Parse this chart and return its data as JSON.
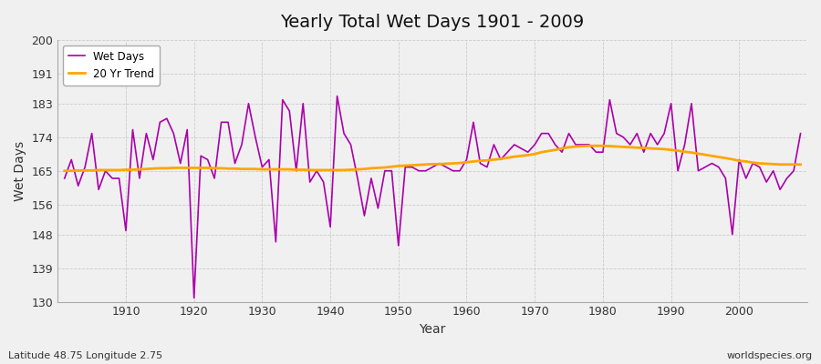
{
  "title": "Yearly Total Wet Days 1901 - 2009",
  "xlabel": "Year",
  "ylabel": "Wet Days",
  "lat_lon_label": "Latitude 48.75 Longitude 2.75",
  "source_label": "worldspecies.org",
  "ylim": [
    130,
    200
  ],
  "yticks": [
    130,
    139,
    148,
    156,
    165,
    174,
    183,
    191,
    200
  ],
  "line_color": "#AA00AA",
  "trend_color": "#FFA500",
  "bg_color": "#F0F0F0",
  "plot_bg_color": "#F0F0F0",
  "years": [
    1901,
    1902,
    1903,
    1904,
    1905,
    1906,
    1907,
    1908,
    1909,
    1910,
    1911,
    1912,
    1913,
    1914,
    1915,
    1916,
    1917,
    1918,
    1919,
    1920,
    1921,
    1922,
    1923,
    1924,
    1925,
    1926,
    1927,
    1928,
    1929,
    1930,
    1931,
    1932,
    1933,
    1934,
    1935,
    1936,
    1937,
    1938,
    1939,
    1940,
    1941,
    1942,
    1943,
    1944,
    1945,
    1946,
    1947,
    1948,
    1949,
    1950,
    1951,
    1952,
    1953,
    1954,
    1955,
    1956,
    1957,
    1958,
    1959,
    1960,
    1961,
    1962,
    1963,
    1964,
    1965,
    1966,
    1967,
    1968,
    1969,
    1970,
    1971,
    1972,
    1973,
    1974,
    1975,
    1976,
    1977,
    1978,
    1979,
    1980,
    1981,
    1982,
    1983,
    1984,
    1985,
    1986,
    1987,
    1988,
    1989,
    1990,
    1991,
    1992,
    1993,
    1994,
    1995,
    1996,
    1997,
    1998,
    1999,
    2000,
    2001,
    2002,
    2003,
    2004,
    2005,
    2006,
    2007,
    2008,
    2009
  ],
  "wet_days": [
    163,
    168,
    161,
    166,
    175,
    160,
    165,
    163,
    163,
    149,
    176,
    163,
    175,
    168,
    178,
    179,
    175,
    167,
    176,
    131,
    169,
    168,
    163,
    178,
    178,
    167,
    172,
    183,
    174,
    166,
    168,
    146,
    184,
    181,
    165,
    183,
    162,
    165,
    162,
    150,
    185,
    175,
    172,
    163,
    153,
    163,
    155,
    165,
    165,
    145,
    166,
    166,
    165,
    165,
    166,
    167,
    166,
    165,
    165,
    168,
    178,
    167,
    166,
    172,
    168,
    170,
    172,
    171,
    170,
    172,
    175,
    175,
    172,
    170,
    175,
    172,
    172,
    172,
    170,
    170,
    184,
    175,
    174,
    172,
    175,
    170,
    175,
    172,
    175,
    183,
    165,
    172,
    183,
    165,
    166,
    167,
    166,
    163,
    148,
    168,
    163,
    167,
    166,
    162,
    165,
    160,
    163,
    165,
    175
  ],
  "trend_values": [
    165.0,
    165.0,
    165.1,
    165.1,
    165.1,
    165.2,
    165.2,
    165.2,
    165.2,
    165.3,
    165.3,
    165.4,
    165.5,
    165.6,
    165.7,
    165.7,
    165.8,
    165.8,
    165.8,
    165.8,
    165.8,
    165.8,
    165.7,
    165.7,
    165.6,
    165.6,
    165.5,
    165.5,
    165.5,
    165.4,
    165.4,
    165.4,
    165.4,
    165.4,
    165.3,
    165.3,
    165.2,
    165.2,
    165.2,
    165.2,
    165.2,
    165.2,
    165.3,
    165.4,
    165.5,
    165.7,
    165.8,
    165.9,
    166.1,
    166.3,
    166.4,
    166.5,
    166.6,
    166.7,
    166.8,
    166.8,
    166.9,
    167.0,
    167.1,
    167.3,
    167.5,
    167.7,
    167.8,
    168.0,
    168.2,
    168.5,
    168.8,
    169.0,
    169.2,
    169.5,
    170.0,
    170.3,
    170.6,
    171.0,
    171.3,
    171.5,
    171.6,
    171.7,
    171.7,
    171.7,
    171.6,
    171.5,
    171.4,
    171.3,
    171.2,
    171.1,
    171.0,
    170.9,
    170.8,
    170.6,
    170.4,
    170.1,
    169.9,
    169.6,
    169.3,
    169.0,
    168.7,
    168.4,
    168.1,
    167.7,
    167.5,
    167.2,
    167.0,
    166.9,
    166.8,
    166.7,
    166.7,
    166.7,
    166.7
  ]
}
